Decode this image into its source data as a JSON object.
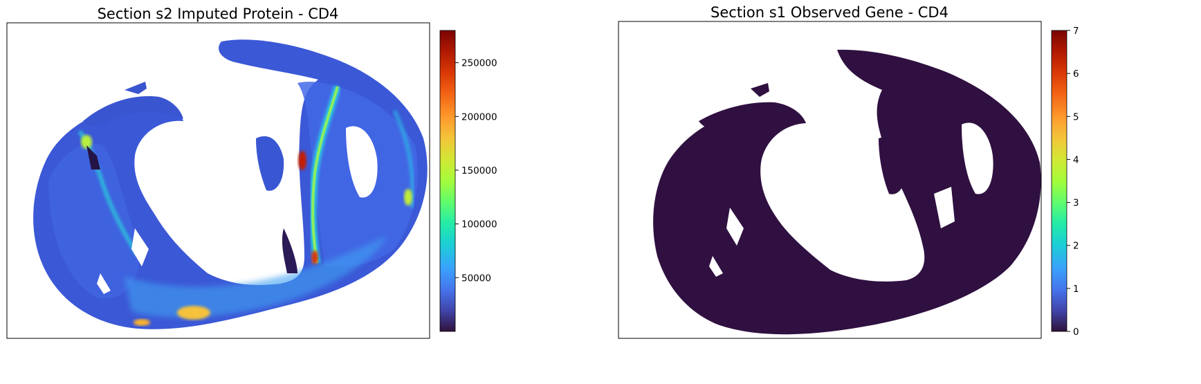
{
  "chart_data": [
    {
      "type": "heatmap",
      "title": "Section s2 Imputed Protein - CD4",
      "colormap": "turbo",
      "colorbar": {
        "range": [
          0,
          280000
        ],
        "ticks": [
          50000,
          100000,
          150000,
          200000,
          250000
        ],
        "tick_labels": [
          "50000",
          "100000",
          "150000",
          "200000",
          "250000"
        ]
      },
      "axes_visible": false,
      "background_value_level": 0.18,
      "hotspot_level": 0.9
    },
    {
      "type": "heatmap",
      "title": "Section s1 Observed Gene - CD4",
      "colormap": "turbo",
      "colorbar": {
        "range": [
          0,
          7
        ],
        "ticks": [
          0,
          1,
          2,
          3,
          4,
          5,
          6,
          7
        ],
        "tick_labels": [
          "0",
          "1",
          "2",
          "3",
          "4",
          "5",
          "6",
          "7"
        ]
      },
      "axes_visible": false,
      "background_value_level": 0.0
    }
  ],
  "colors": {
    "turbo_low": "#30123b",
    "turbo_blue": "#3e6ff0",
    "turbo_cyan": "#28bceb",
    "turbo_green": "#6efe52",
    "turbo_yellow": "#e4d634",
    "turbo_orange": "#fb7e21",
    "turbo_high": "#7a0403",
    "tissue_low": "#2f1040",
    "speckle": "#3b6fd8"
  }
}
